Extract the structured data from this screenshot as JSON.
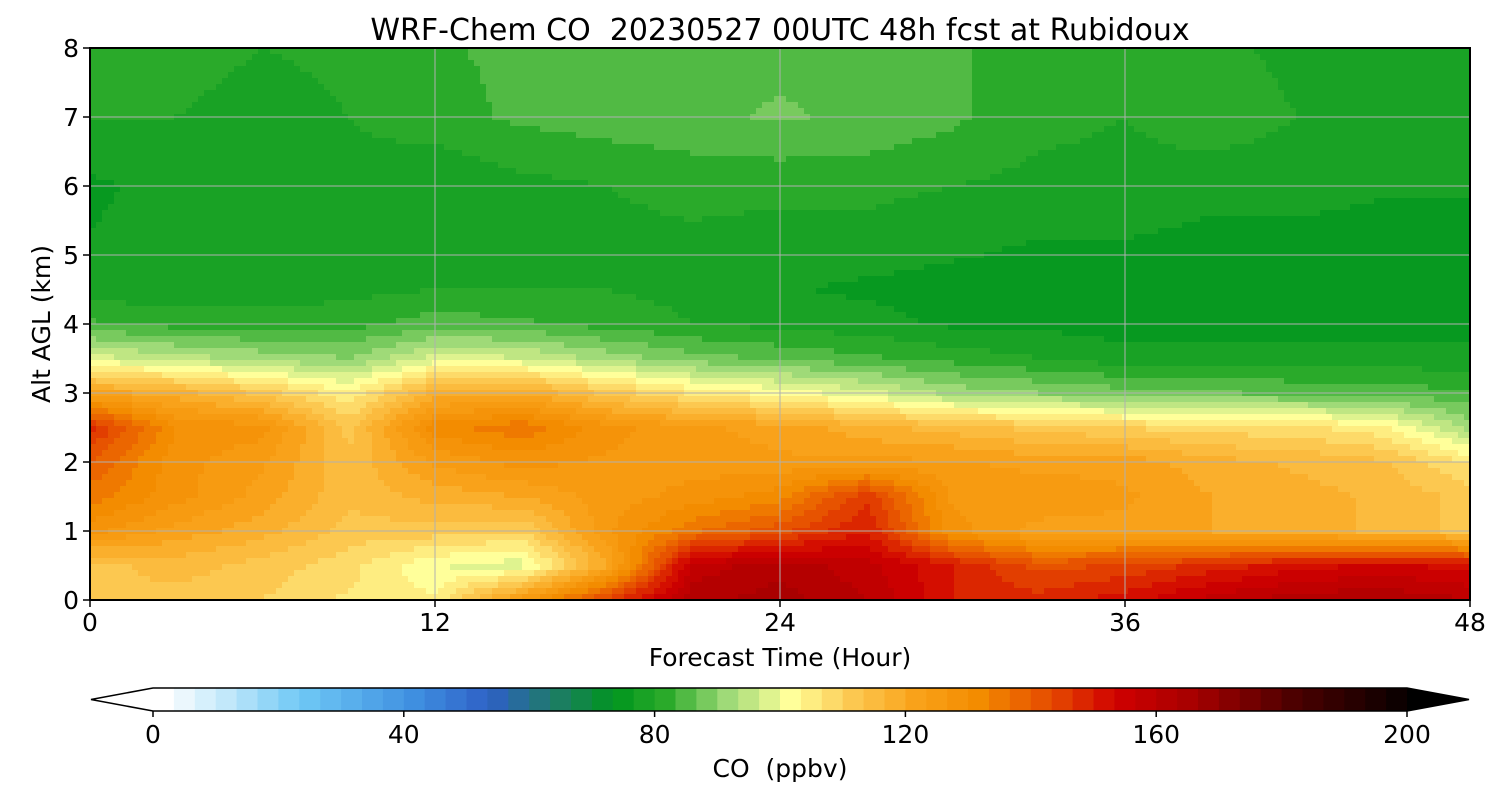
{
  "chart_data": {
    "type": "heatmap",
    "title": "WRF-Chem CO  20230527 00UTC 48h fcst at Rubidoux",
    "xlabel": "Forecast Time (Hour)",
    "ylabel": "Alt AGL (km)",
    "xlim": [
      0,
      48
    ],
    "ylim": [
      0,
      8
    ],
    "xticks": [
      0,
      12,
      24,
      36,
      48
    ],
    "yticks": [
      0,
      1,
      2,
      3,
      4,
      5,
      6,
      7,
      8
    ],
    "grid": true,
    "x": [
      0,
      3,
      6,
      9,
      12,
      15,
      18,
      21,
      24,
      27,
      30,
      33,
      36,
      39,
      42,
      45,
      48
    ],
    "y": [
      0,
      0.5,
      1,
      1.5,
      2,
      2.5,
      3,
      3.5,
      4,
      4.5,
      5,
      6,
      7,
      8
    ],
    "z": [
      [
        112,
        112,
        110,
        106,
        104,
        125,
        145,
        162,
        165,
        160,
        150,
        148,
        152,
        158,
        162,
        163,
        160
      ],
      [
        112,
        115,
        112,
        108,
        100,
        98,
        120,
        158,
        162,
        158,
        150,
        142,
        144,
        148,
        152,
        154,
        152
      ],
      [
        128,
        122,
        118,
        112,
        112,
        110,
        126,
        136,
        142,
        150,
        128,
        122,
        122,
        120,
        118,
        116,
        112
      ],
      [
        135,
        128,
        122,
        114,
        118,
        120,
        125,
        128,
        132,
        146,
        126,
        126,
        124,
        120,
        118,
        116,
        112
      ],
      [
        140,
        128,
        124,
        114,
        124,
        128,
        126,
        125,
        124,
        124,
        124,
        122,
        122,
        118,
        116,
        114,
        106
      ],
      [
        148,
        130,
        128,
        112,
        132,
        136,
        128,
        124,
        122,
        118,
        115,
        112,
        110,
        108,
        108,
        104,
        92
      ],
      [
        122,
        118,
        112,
        104,
        118,
        120,
        112,
        106,
        102,
        98,
        92,
        90,
        88,
        87,
        86,
        85,
        84
      ],
      [
        98,
        95,
        92,
        90,
        98,
        97,
        92,
        88,
        86,
        84,
        82,
        80,
        78,
        78,
        78,
        78,
        78
      ],
      [
        84,
        82,
        82,
        82,
        85,
        84,
        82,
        80,
        79,
        78,
        76,
        76,
        75,
        75,
        75,
        75,
        75
      ],
      [
        78,
        78,
        78,
        79,
        80,
        80,
        80,
        79,
        77,
        76,
        75,
        75,
        75,
        75,
        75,
        75,
        75
      ],
      [
        77,
        78,
        78,
        79,
        78,
        79,
        79,
        79,
        78,
        78,
        77,
        76,
        76,
        75,
        75,
        75,
        75
      ],
      [
        76,
        78,
        78,
        79,
        77,
        79,
        80,
        81,
        81,
        81,
        80,
        79,
        79,
        78,
        78,
        77,
        77
      ],
      [
        80,
        80,
        78,
        80,
        82,
        84,
        85,
        86,
        87,
        86,
        84,
        81,
        80,
        82,
        80,
        79,
        77
      ],
      [
        82,
        82,
        80,
        81,
        83,
        84,
        85,
        86,
        86,
        86,
        84,
        81,
        80,
        81,
        79,
        78,
        77
      ]
    ],
    "colorbar": {
      "label": "CO  (ppbv)",
      "min": 0,
      "max": 200,
      "ticks": [
        0,
        40,
        80,
        120,
        160,
        200
      ],
      "extend": "both",
      "levels": 61,
      "stops": [
        {
          "value": 0,
          "color": "#ffffff"
        },
        {
          "value": 10,
          "color": "#c2e8fa"
        },
        {
          "value": 22,
          "color": "#6ec8f5"
        },
        {
          "value": 40,
          "color": "#3f8fe0"
        },
        {
          "value": 52,
          "color": "#2e60c6"
        },
        {
          "value": 62,
          "color": "#1f7a6a"
        },
        {
          "value": 72,
          "color": "#00961e"
        },
        {
          "value": 80,
          "color": "#2aaa2a"
        },
        {
          "value": 90,
          "color": "#9fda78"
        },
        {
          "value": 100,
          "color": "#ffff9a"
        },
        {
          "value": 110,
          "color": "#fcc850"
        },
        {
          "value": 120,
          "color": "#f9a21a"
        },
        {
          "value": 130,
          "color": "#f38c00"
        },
        {
          "value": 142,
          "color": "#e54800"
        },
        {
          "value": 152,
          "color": "#d00000"
        },
        {
          "value": 165,
          "color": "#a30000"
        },
        {
          "value": 180,
          "color": "#4d0000"
        },
        {
          "value": 200,
          "color": "#000000"
        }
      ]
    }
  }
}
